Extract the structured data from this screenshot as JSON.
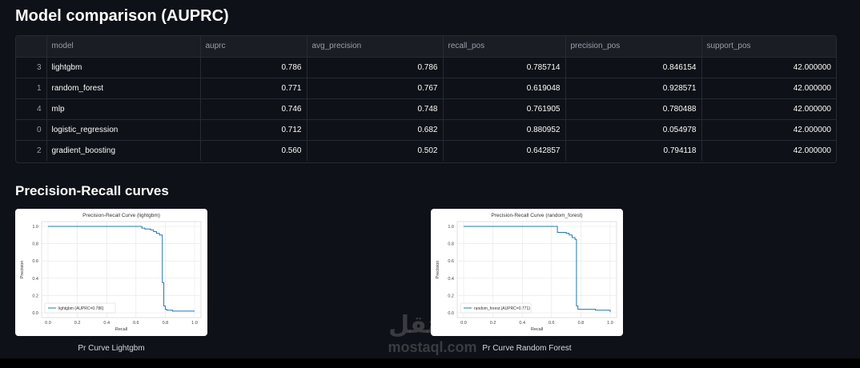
{
  "header": {
    "title": "Model comparison (AUPRC)"
  },
  "table": {
    "columns": [
      "",
      "model",
      "auprc",
      "avg_precision",
      "recall_pos",
      "precision_pos",
      "support_pos"
    ],
    "rows": [
      [
        "3",
        "lightgbm",
        "0.786",
        "0.786",
        "0.785714",
        "0.846154",
        "42.000000"
      ],
      [
        "1",
        "random_forest",
        "0.771",
        "0.767",
        "0.619048",
        "0.928571",
        "42.000000"
      ],
      [
        "4",
        "mlp",
        "0.746",
        "0.748",
        "0.761905",
        "0.780488",
        "42.000000"
      ],
      [
        "0",
        "logistic_regression",
        "0.712",
        "0.682",
        "0.880952",
        "0.054978",
        "42.000000"
      ],
      [
        "2",
        "gradient_boosting",
        "0.560",
        "0.502",
        "0.642857",
        "0.794118",
        "42.000000"
      ]
    ]
  },
  "section": {
    "title": "Precision-Recall curves"
  },
  "charts": [
    {
      "caption": "Pr Curve Lightgbm",
      "chart_data": {
        "type": "line",
        "title": "Precision-Recall Curve (lightgbm)",
        "xlabel": "Recall",
        "ylabel": "Precision",
        "xlim": [
          0,
          1
        ],
        "ylim": [
          0,
          1
        ],
        "xticks": [
          "0.0",
          "0.2",
          "0.4",
          "0.6",
          "0.8",
          "1.0"
        ],
        "yticks": [
          "0.0",
          "0.2",
          "0.4",
          "0.6",
          "0.8",
          "1.0"
        ],
        "grid": true,
        "legend": "lower-left",
        "color": "#1f77b4",
        "series": [
          {
            "name": "lightgbm (AUPRC=0.786)",
            "x": [
              0.0,
              0.62,
              0.64,
              0.66,
              0.7,
              0.72,
              0.74,
              0.76,
              0.78,
              0.78,
              0.79,
              0.79,
              0.8,
              0.81,
              0.82,
              0.85,
              0.9,
              1.0
            ],
            "y": [
              1.0,
              1.0,
              0.98,
              0.97,
              0.96,
              0.94,
              0.92,
              0.9,
              0.88,
              0.35,
              0.34,
              0.08,
              0.04,
              0.03,
              0.03,
              0.02,
              0.02,
              0.02
            ]
          }
        ]
      }
    },
    {
      "caption": "Pr Curve Random Forest",
      "chart_data": {
        "type": "line",
        "title": "Precision-Recall Curve (random_forest)",
        "xlabel": "Recall",
        "ylabel": "Precision",
        "xlim": [
          0,
          1
        ],
        "ylim": [
          0,
          1
        ],
        "xticks": [
          "0.0",
          "0.2",
          "0.4",
          "0.6",
          "0.8",
          "1.0"
        ],
        "yticks": [
          "0.0",
          "0.2",
          "0.4",
          "0.6",
          "0.8",
          "1.0"
        ],
        "grid": true,
        "legend": "lower-left",
        "color": "#1f77b4",
        "series": [
          {
            "name": "random_forest (AUPRC=0.771)",
            "x": [
              0.0,
              0.62,
              0.64,
              0.64,
              0.66,
              0.7,
              0.72,
              0.74,
              0.76,
              0.77,
              0.77,
              0.78,
              0.8,
              0.9,
              1.0
            ],
            "y": [
              1.0,
              1.0,
              0.98,
              0.93,
              0.93,
              0.92,
              0.9,
              0.87,
              0.85,
              0.83,
              0.08,
              0.04,
              0.04,
              0.03,
              0.01
            ]
          }
        ]
      }
    }
  ],
  "watermark": {
    "logo": "مستقل",
    "text": "mostaql.com"
  }
}
